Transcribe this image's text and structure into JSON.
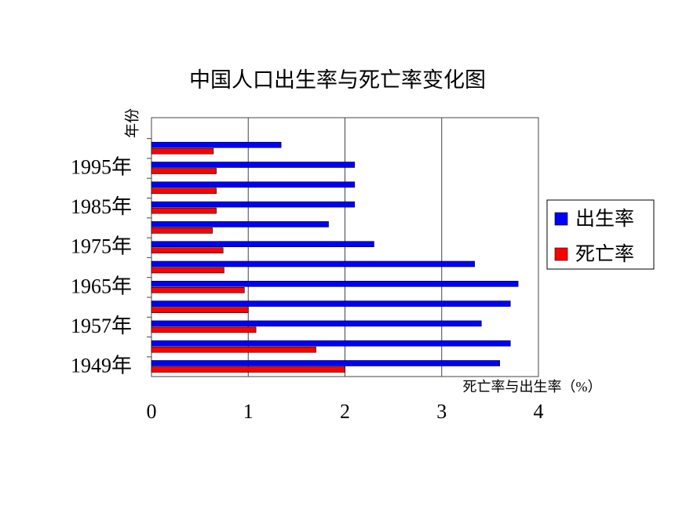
{
  "chart_data": {
    "type": "hbar",
    "title": "中国人口出生率与死亡率变化图",
    "y_label": "年份",
    "x_label": "死亡率与出生率（%）",
    "categories": [
      "1949年",
      null,
      "1957年",
      null,
      "1965年",
      null,
      "1975年",
      null,
      "1985年",
      null,
      "1995年",
      null
    ],
    "series": [
      {
        "name": "出生率",
        "color": "#0000ff",
        "values": [
          3.6,
          3.71,
          3.41,
          3.71,
          3.79,
          3.34,
          2.3,
          1.83,
          2.1,
          2.1,
          2.1,
          1.34
        ]
      },
      {
        "name": "死亡率",
        "color": "#ff0000",
        "values": [
          2.0,
          1.7,
          1.08,
          1.0,
          0.96,
          0.75,
          0.74,
          0.63,
          0.67,
          0.67,
          0.67,
          0.64
        ]
      }
    ],
    "xlim": [
      0,
      4
    ],
    "xticks": [
      0,
      1,
      2,
      3,
      4
    ],
    "grid": true,
    "legend": "right"
  }
}
